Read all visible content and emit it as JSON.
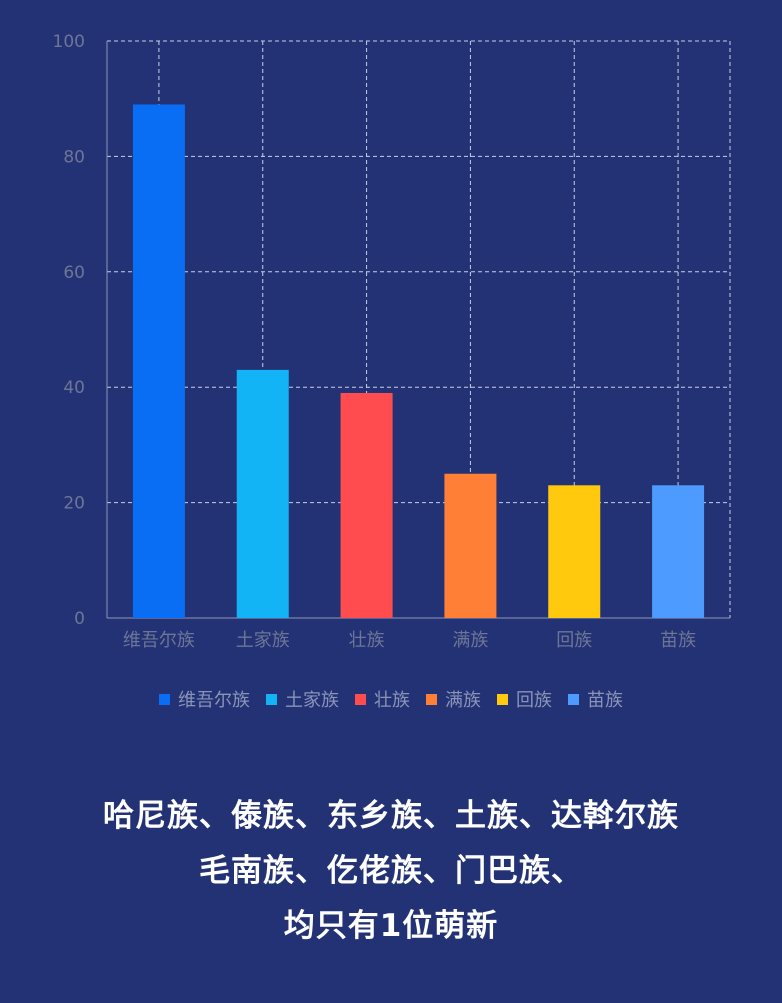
{
  "chart_data": {
    "type": "bar",
    "categories": [
      "维吾尔族",
      "土家族",
      "壮族",
      "满族",
      "回族",
      "苗族"
    ],
    "values": [
      89,
      43,
      39,
      25,
      23,
      23
    ],
    "colors": [
      "#0a6ef5",
      "#12b4f5",
      "#ff4d4f",
      "#ff7f37",
      "#ffc90e",
      "#4d9bff"
    ],
    "ylim": [
      0,
      100
    ],
    "yticks": [
      0,
      20,
      40,
      60,
      80,
      100
    ],
    "grid": true,
    "grid_style": "dashed",
    "legend_position": "bottom",
    "legend": [
      "维吾尔族",
      "土家族",
      "壮族",
      "满族",
      "回族",
      "苗族"
    ]
  },
  "caption": {
    "line1": "哈尼族、傣族、东乡族、土族、达斡尔族",
    "line2": "毛南族、仡佬族、门巴族、",
    "line3": "均只有1位萌新"
  }
}
